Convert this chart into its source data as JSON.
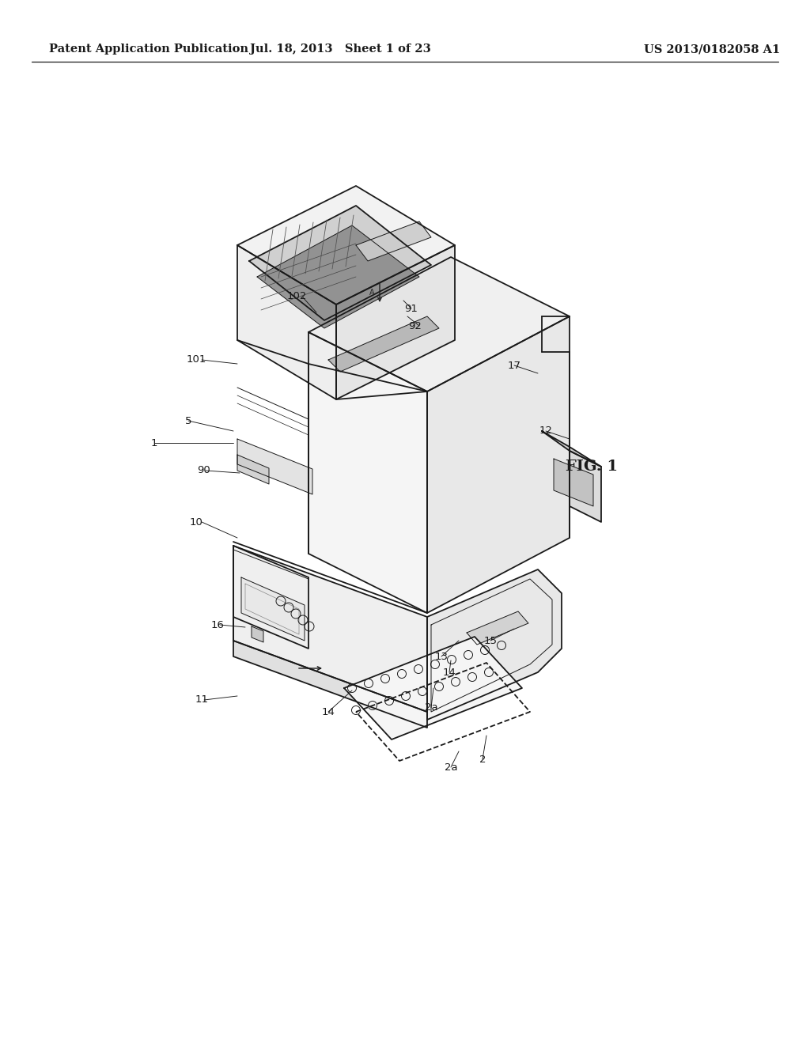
{
  "bg_color": "#ffffff",
  "line_color": "#1a1a1a",
  "header_left": "Patent Application Publication",
  "header_mid": "Jul. 18, 2013   Sheet 1 of 23",
  "header_right": "US 2013/0182058 A1",
  "fig_label": "FIG. 1",
  "lw": 1.3,
  "lw_thin": 0.7,
  "lw_thick": 1.8
}
